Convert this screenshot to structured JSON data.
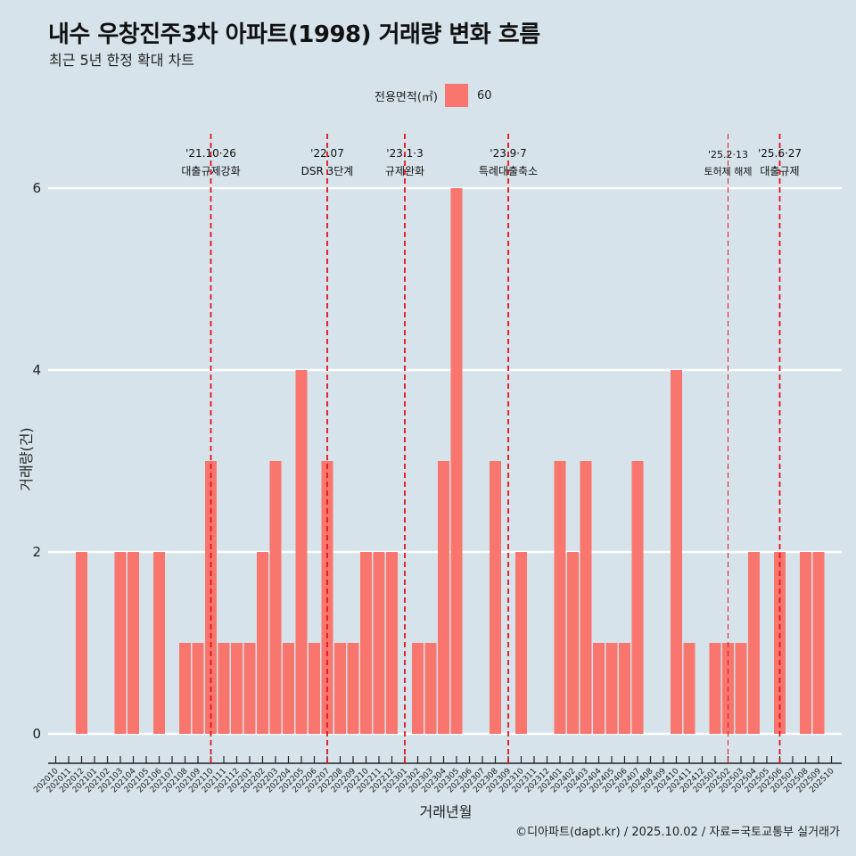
{
  "header": {
    "title": "내수 우창진주3차 아파트(1998) 거래량 변화 흐름",
    "subtitle": "최근 5년 한정 확대 차트"
  },
  "legend": {
    "title": "전용면적(㎡)",
    "items": [
      {
        "label": "60",
        "color": "#f8766d"
      }
    ]
  },
  "caption": "©디아파트(dapt.kr) / 2025.10.02 / 자료=국토교통부 실거래가",
  "colors": {
    "background": "#d6e3ea",
    "bar": "#f8766d",
    "grid": "#ffffff",
    "event_line": "#e8101a"
  },
  "chart_data": {
    "type": "bar",
    "title": "내수 우창진주3차 아파트(1998) 거래량 변화 흐름",
    "subtitle": "최근 5년 한정 확대 차트",
    "xlabel": "거래년월",
    "ylabel": "거래량(건)",
    "ylim": [
      0,
      6
    ],
    "yticks": [
      0,
      2,
      4,
      6
    ],
    "grid": true,
    "legend_position": "top",
    "categories": [
      "202010",
      "202011",
      "202012",
      "202101",
      "202102",
      "202103",
      "202104",
      "202105",
      "202106",
      "202107",
      "202108",
      "202109",
      "202110",
      "202111",
      "202112",
      "202201",
      "202202",
      "202203",
      "202204",
      "202205",
      "202206",
      "202207",
      "202208",
      "202209",
      "202210",
      "202211",
      "202212",
      "202301",
      "202302",
      "202303",
      "202304",
      "202305",
      "202306",
      "202307",
      "202308",
      "202309",
      "202310",
      "202311",
      "202312",
      "202401",
      "202402",
      "202403",
      "202404",
      "202405",
      "202406",
      "202407",
      "202408",
      "202409",
      "202410",
      "202411",
      "202412",
      "202501",
      "202502",
      "202503",
      "202504",
      "202505",
      "202506",
      "202507",
      "202508",
      "202509",
      "202510"
    ],
    "series": [
      {
        "name": "60",
        "values": [
          0,
          0,
          2,
          0,
          0,
          2,
          2,
          0,
          2,
          0,
          1,
          1,
          3,
          1,
          1,
          1,
          2,
          3,
          1,
          4,
          1,
          3,
          1,
          1,
          2,
          2,
          2,
          0,
          1,
          1,
          3,
          6,
          0,
          0,
          3,
          0,
          2,
          0,
          0,
          3,
          2,
          3,
          1,
          1,
          1,
          3,
          0,
          0,
          4,
          1,
          0,
          1,
          1,
          1,
          2,
          0,
          2,
          0,
          2,
          2,
          0
        ]
      }
    ],
    "annotations": [
      {
        "x": "202110",
        "date": "'21.10·26",
        "label": "대출규제강화"
      },
      {
        "x": "202207",
        "date": "'22.07",
        "label": "DSR 3단계"
      },
      {
        "x": "202301",
        "date": "'23.1·3",
        "label": "규제완화"
      },
      {
        "x": "202309",
        "date": "'23.9·7",
        "label": "특례대출축소"
      },
      {
        "x": "202502",
        "date": "'25.2·13",
        "label": "토허제 해제"
      },
      {
        "x": "202506",
        "date": "'25.6·27",
        "label": "대출규제"
      }
    ]
  }
}
